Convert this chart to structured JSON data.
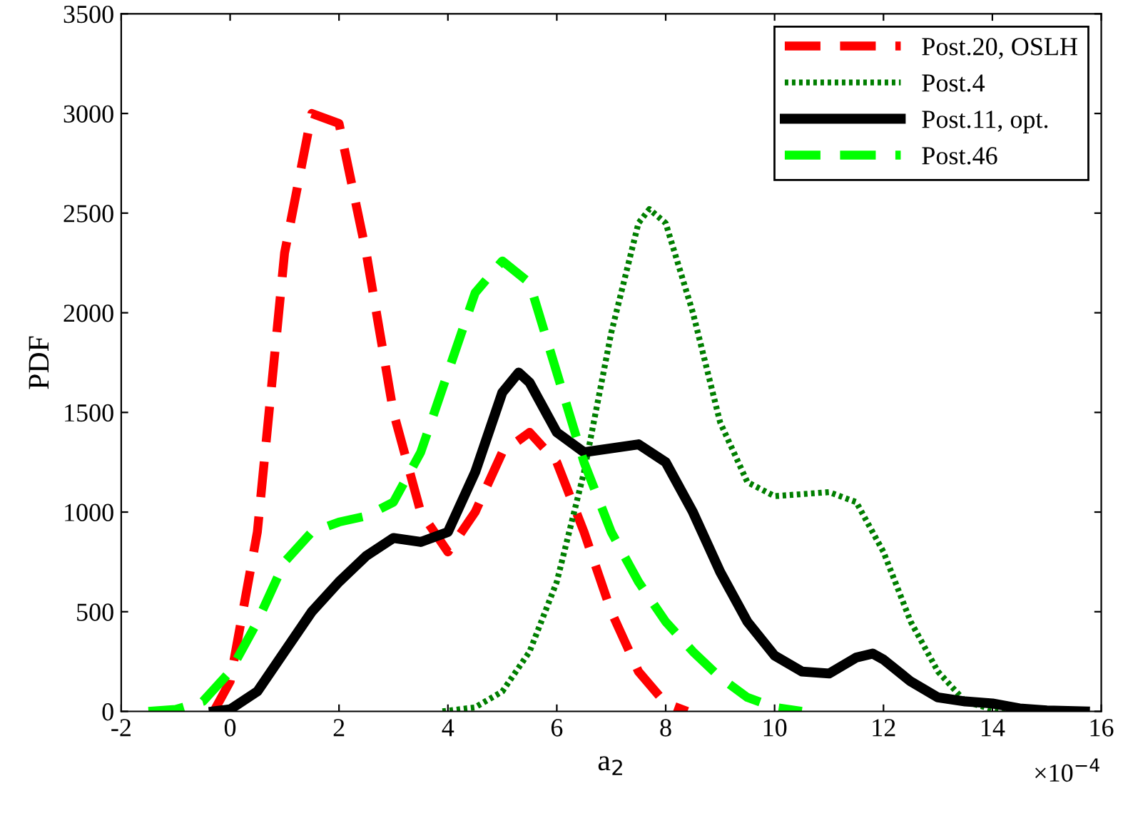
{
  "chart_data": {
    "type": "line",
    "xlabel": "a$_{2}$",
    "ylabel": "PDF",
    "xlim": [
      -2,
      16
    ],
    "ylim": [
      0,
      3500
    ],
    "xticks": [
      -2,
      0,
      2,
      4,
      6,
      8,
      10,
      12,
      14,
      16
    ],
    "yticks": [
      0,
      500,
      1000,
      1500,
      2000,
      2500,
      3000,
      3500
    ],
    "grid": false,
    "legend": "top right",
    "marker": "none",
    "annotations": [
      "×10$^{−4}$"
    ],
    "series": [
      {
        "name": "Post.20, OSLH",
        "color": "#ff0000",
        "line_style": "dashed",
        "x": [
          -0.3,
          0,
          0.5,
          1,
          1.5,
          2,
          2.5,
          3,
          3.5,
          4,
          4.5,
          5,
          5.5,
          6,
          6.5,
          7,
          7.5,
          8,
          8.4
        ],
        "values": [
          0,
          150,
          900,
          2300,
          3000,
          2950,
          2300,
          1500,
          1000,
          800,
          1000,
          1300,
          1400,
          1250,
          900,
          500,
          200,
          40,
          0
        ]
      },
      {
        "name": "Post.4",
        "color": "#007f00",
        "line_style": "dotted",
        "x": [
          3.9,
          4.5,
          5,
          5.5,
          6,
          6.5,
          7,
          7.5,
          7.7,
          8,
          8.5,
          9,
          9.5,
          10,
          11,
          11.5,
          12,
          12.5,
          13,
          13.5,
          14,
          14.5
        ],
        "values": [
          0,
          20,
          100,
          300,
          650,
          1200,
          1900,
          2450,
          2520,
          2450,
          2000,
          1450,
          1150,
          1080,
          1100,
          1050,
          800,
          450,
          200,
          50,
          10,
          0
        ]
      },
      {
        "name": "Post.11, opt.",
        "color": "#000000",
        "line_style": "solid",
        "x": [
          -0.3,
          0,
          0.5,
          1,
          1.5,
          2,
          2.5,
          3,
          3.5,
          4,
          4.5,
          5,
          5.3,
          5.5,
          6,
          6.5,
          7,
          7.5,
          8,
          8.5,
          9,
          9.5,
          10,
          10.5,
          11,
          11.5,
          11.8,
          12,
          12.5,
          13,
          13.5,
          14,
          14.5,
          15,
          15.7
        ],
        "values": [
          0,
          10,
          100,
          300,
          500,
          650,
          780,
          870,
          850,
          900,
          1200,
          1600,
          1700,
          1650,
          1400,
          1300,
          1320,
          1340,
          1250,
          1000,
          700,
          450,
          280,
          200,
          190,
          270,
          290,
          260,
          150,
          70,
          50,
          40,
          15,
          5,
          0
        ]
      },
      {
        "name": "Post.46",
        "color": "#00ff00",
        "line_style": "dashed",
        "x": [
          -1.5,
          -1,
          -0.5,
          0,
          0.5,
          1,
          1.5,
          2,
          2.5,
          3,
          3.5,
          4,
          4.5,
          5,
          5.5,
          6,
          6.5,
          7,
          7.5,
          8,
          8.5,
          9,
          9.5,
          10,
          10.5
        ],
        "values": [
          0,
          10,
          50,
          200,
          450,
          750,
          900,
          950,
          980,
          1050,
          1300,
          1700,
          2100,
          2260,
          2150,
          1700,
          1250,
          900,
          650,
          450,
          300,
          170,
          70,
          20,
          0
        ]
      }
    ]
  }
}
